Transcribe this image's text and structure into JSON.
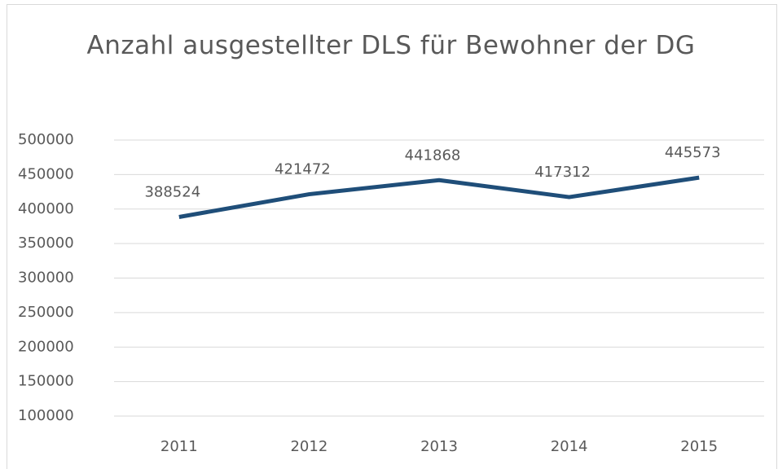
{
  "chart_data": {
    "type": "line",
    "title": "Anzahl ausgestellter DLS für Bewohner der DG",
    "categories": [
      "2011",
      "2012",
      "2013",
      "2014",
      "2015"
    ],
    "series": [
      {
        "name": "DLS",
        "color": "#1f4e79",
        "values": [
          388524,
          421472,
          441868,
          417312,
          445573
        ]
      }
    ],
    "ylim": [
      100000,
      500000
    ],
    "yticks": [
      100000,
      150000,
      200000,
      250000,
      300000,
      350000,
      400000,
      450000,
      500000
    ],
    "grid": true
  }
}
